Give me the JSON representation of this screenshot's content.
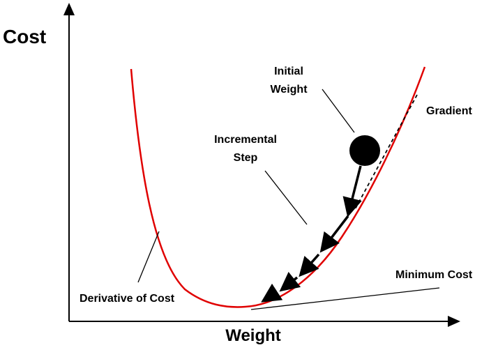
{
  "axes": {
    "y_label": "Cost",
    "x_label": "Weight"
  },
  "annotations": {
    "initial_weight": [
      "Initial",
      "Weight"
    ],
    "incremental_step": [
      "Incremental",
      "Step"
    ],
    "gradient": "Gradient",
    "minimum_cost": "Minimum Cost",
    "derivative_of_cost": "Derivative of Cost"
  },
  "colors": {
    "curve": "#e00000",
    "ink": "#000000",
    "background": "#ffffff"
  }
}
